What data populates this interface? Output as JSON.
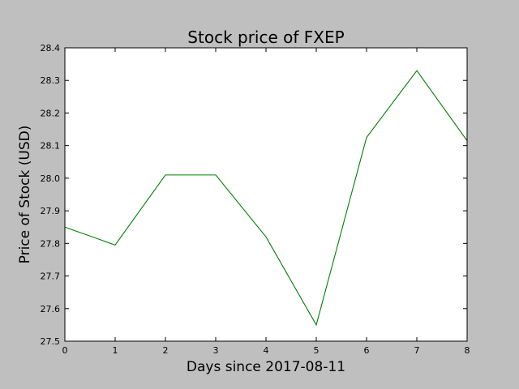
{
  "chart_data": {
    "type": "line",
    "title": "Stock price of FXEP",
    "xlabel": "Days since 2017-08-11",
    "ylabel": "Price of Stock (USD)",
    "xlim": [
      0,
      8
    ],
    "ylim": [
      27.5,
      28.4
    ],
    "xticks": [
      "0",
      "1",
      "2",
      "3",
      "4",
      "5",
      "6",
      "7",
      "8"
    ],
    "yticks": [
      "27.5",
      "27.6",
      "27.7",
      "27.8",
      "27.9",
      "28.0",
      "28.1",
      "28.2",
      "28.3",
      "28.4"
    ],
    "grid": false,
    "series": [
      {
        "color": "#008000",
        "x": [
          0,
          1,
          2,
          3,
          4,
          5,
          6,
          7,
          8
        ],
        "y": [
          27.85,
          27.795,
          28.01,
          28.01,
          27.82,
          27.55,
          28.125,
          28.33,
          28.115
        ]
      }
    ]
  }
}
